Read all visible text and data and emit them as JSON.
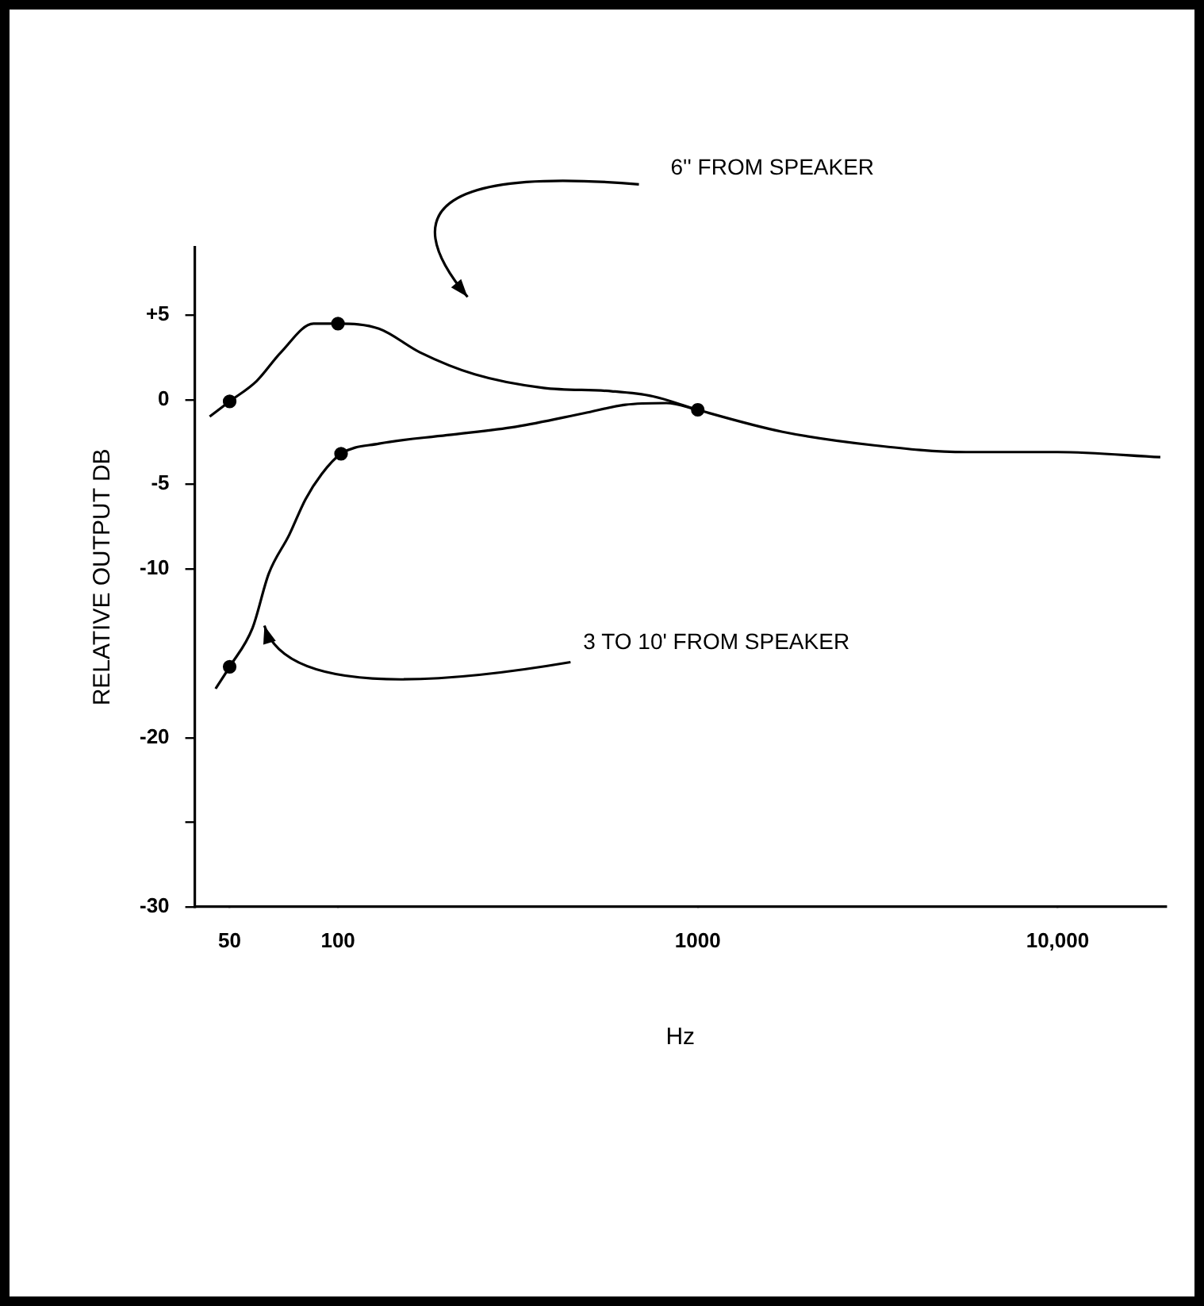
{
  "chart_data": {
    "type": "line",
    "xlabel": "Hz",
    "ylabel": "RELATIVE OUTPUT DB",
    "log": "x",
    "xlim": [
      40,
      20000
    ],
    "xticks": [
      50,
      100,
      1000,
      {
        "value": 10000,
        "label": "10,000"
      }
    ],
    "ylim": [
      -30,
      9
    ],
    "yticks": [
      {
        "value": 5,
        "label": "+5"
      },
      0,
      -5,
      -10,
      -20,
      {
        "value": -25,
        "label": null
      },
      -30
    ],
    "grid": false,
    "legend": false,
    "line_style": "solid",
    "series": [
      {
        "color": "#000000",
        "marker": "none",
        "x": [
          44,
          50,
          59.4,
          69.4,
          85.5,
          100,
          130,
          169,
          240,
          372,
          576,
          750,
          1000,
          1720,
          3090,
          5560,
          10000,
          19300
        ],
        "values": [
          -1.0,
          -0.1,
          1.1,
          2.8,
          4.5,
          4.5,
          4.2,
          2.8,
          1.5,
          0.7,
          0.5,
          0.2,
          -0.6,
          -1.9,
          -2.7,
          -3.1,
          -3.1,
          -3.4
        ]
      },
      {
        "color": "#000000",
        "marker": "none",
        "x": [
          45.7,
          50,
          57.9,
          64.2,
          73.2,
          81.2,
          90.1,
          102,
          130,
          201,
          312,
          483,
          629,
          818,
          1000
        ],
        "values": [
          -17.1,
          -15.8,
          -13.5,
          -10.3,
          -8.0,
          -5.9,
          -4.4,
          -3.2,
          -2.6,
          -2.1,
          -1.6,
          -0.8,
          -0.3,
          -0.2,
          -0.6
        ]
      },
      {
        "type": "scatter",
        "color": "#000000",
        "marker": "circle",
        "x": [
          50,
          100,
          1000,
          50,
          102
        ],
        "values": [
          -0.1,
          4.5,
          -0.6,
          -15.8,
          -3.2
        ]
      }
    ],
    "annotations": [
      "6'' FROM SPEAKER",
      "3 TO 10' FROM SPEAKER"
    ]
  }
}
